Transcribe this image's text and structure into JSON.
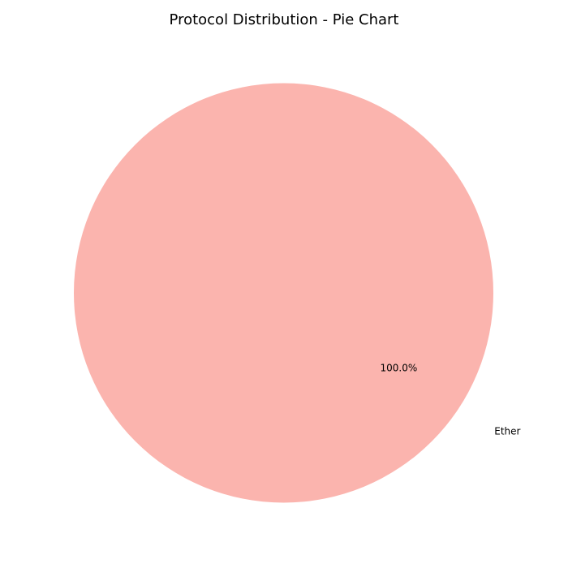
{
  "chart_data": {
    "type": "pie",
    "title": "Protocol Distribution - Pie Chart",
    "categories": [
      "Ether"
    ],
    "values": [
      100.0
    ],
    "percent_labels": [
      "100.0%"
    ],
    "colors": [
      "#fbb4ae"
    ],
    "legend": "none"
  }
}
